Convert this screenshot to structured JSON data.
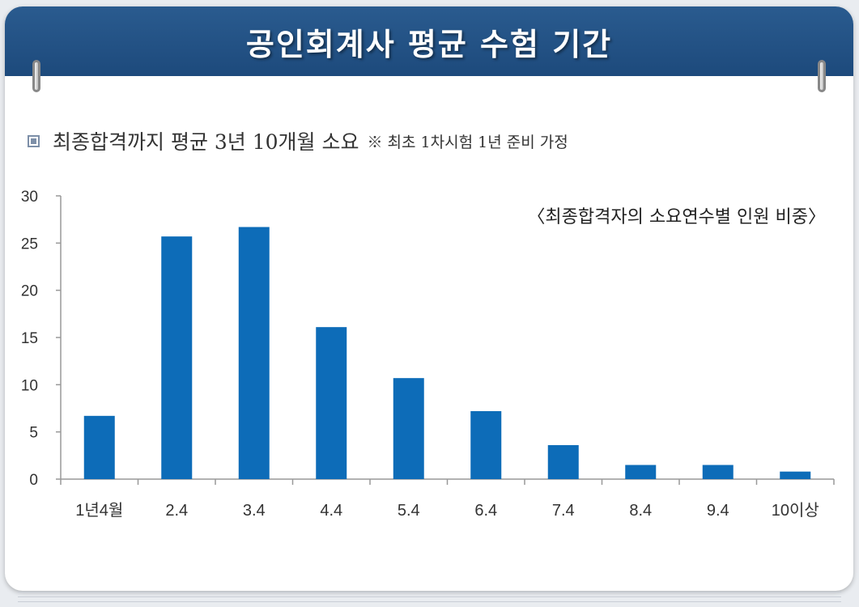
{
  "header": {
    "title": "공인회계사 평균 수험 기간"
  },
  "subtitle": {
    "main": "최종합격까지 평균 3년 10개월 소요",
    "note": "※ 최초 1차시험 1년 준비 가정"
  },
  "colors": {
    "header": "#1d4a7c",
    "bar": "#0d6cb8",
    "axis": "#999999",
    "text": "#333333"
  },
  "chart_data": {
    "type": "bar",
    "title": "〈최종합격자의 소요연수별 인원 비중〉",
    "categories": [
      "1년4월",
      "2.4",
      "3.4",
      "4.4",
      "5.4",
      "6.4",
      "7.4",
      "8.4",
      "9.4",
      "10이상"
    ],
    "values": [
      6.7,
      25.7,
      26.7,
      16.1,
      10.7,
      7.2,
      3.6,
      1.5,
      1.5,
      0.8
    ],
    "yticks": [
      0,
      5,
      10,
      15,
      20,
      25,
      30
    ],
    "ylim": [
      0,
      30
    ],
    "xlabel": "",
    "ylabel": "",
    "grid": false,
    "legend": "none"
  }
}
